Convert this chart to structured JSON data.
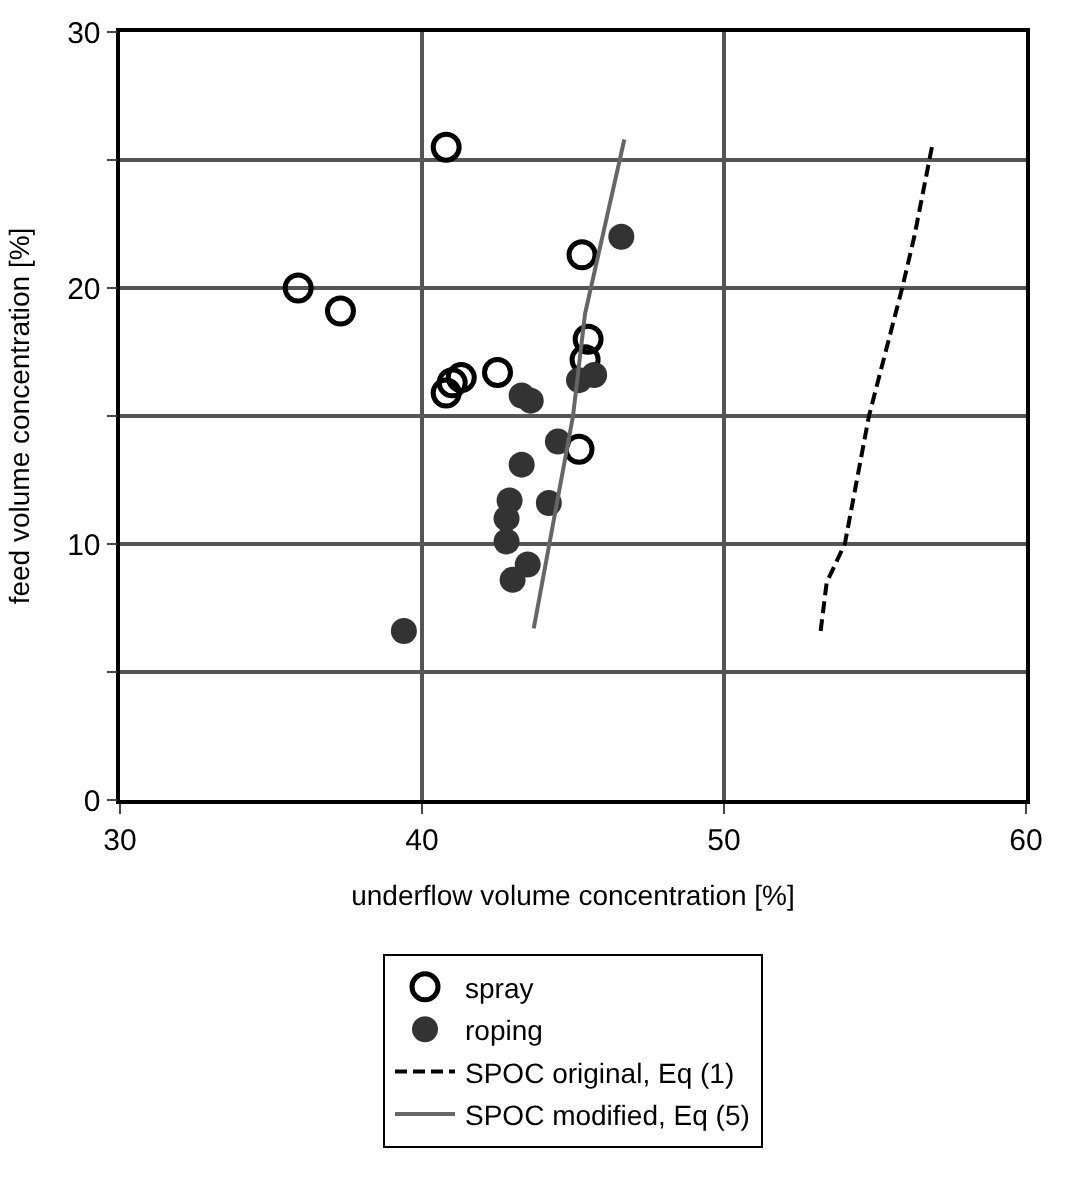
{
  "chart_data": {
    "type": "scatter",
    "xlabel": "underflow volume concentration [%]",
    "ylabel": "feed volume concentration [%]",
    "xlim": [
      30,
      60
    ],
    "xticks": [
      30,
      40,
      50,
      60
    ],
    "ylim": [
      0,
      30
    ],
    "yticks": [
      0,
      {
        "value": 5,
        "label": null
      },
      10,
      {
        "value": 15,
        "label": null
      },
      20,
      {
        "value": 25,
        "label": null
      },
      30
    ],
    "grid": true,
    "legend": "bottom",
    "series": [
      {
        "name": "spray",
        "marker": "circle-open",
        "color": "#000000",
        "x": [
          40.8,
          35.9,
          37.3,
          40.8,
          41.0,
          41.3,
          42.5,
          45.3,
          45.5,
          45.4,
          45.2
        ],
        "values": [
          25.5,
          20.0,
          19.1,
          15.9,
          16.3,
          16.5,
          16.7,
          21.3,
          18.0,
          17.2,
          13.7
        ]
      },
      {
        "name": "roping",
        "marker": "circle",
        "color": "#333333",
        "x": [
          46.6,
          43.3,
          43.6,
          45.7,
          45.2,
          44.5,
          43.3,
          44.2,
          42.9,
          42.8,
          42.8,
          43.5,
          43.0,
          39.4
        ],
        "values": [
          22.0,
          15.8,
          15.6,
          16.6,
          16.4,
          14.0,
          13.1,
          11.6,
          11.7,
          11.0,
          10.1,
          9.2,
          8.6,
          6.6
        ]
      },
      {
        "name": "SPOC original, Eq (1)",
        "type": "line",
        "line_style": "dashed",
        "marker": "none",
        "color": "#000000",
        "x": [
          53.2,
          53.4,
          54.0,
          54.8,
          55.9,
          56.3,
          56.9
        ],
        "values": [
          6.6,
          8.5,
          10.0,
          15.0,
          20.0,
          22.0,
          25.6
        ]
      },
      {
        "name": "SPOC modified, Eq (5)",
        "type": "line",
        "line_style": "solid",
        "marker": "none",
        "color": "#666666",
        "x": [
          43.7,
          45.0,
          45.4,
          46.7
        ],
        "values": [
          6.7,
          15.0,
          19.0,
          25.8
        ]
      }
    ]
  }
}
